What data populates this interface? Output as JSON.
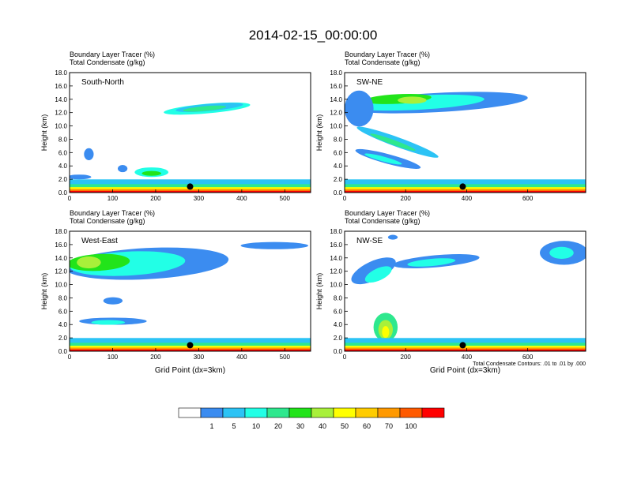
{
  "title": "2014-02-15_00:00:00",
  "chart_data": [
    {
      "type": "heatmap",
      "label": "South-North",
      "left_title_1": "Boundary Layer Tracer   (%)",
      "left_title_2": "Total Condensate   (g/kg)",
      "ylabel": "Height (km)",
      "xlabel": "",
      "xlim": [
        0,
        560
      ],
      "ylim": [
        0,
        18
      ],
      "xticks": [
        "0",
        "100",
        "200",
        "300",
        "400",
        "500"
      ],
      "yticks": [
        "0.0",
        "2.0",
        "4.0",
        "6.0",
        "8.0",
        "10.0",
        "12.0",
        "14.0",
        "16.0",
        "18.0"
      ]
    },
    {
      "type": "heatmap",
      "label": "SW-NE",
      "left_title_1": "Boundary Layer Tracer   (%)",
      "left_title_2": "Total Condensate   (g/kg)",
      "ylabel": "Height (km)",
      "xlabel": "",
      "xlim": [
        0,
        790
      ],
      "ylim": [
        0,
        18
      ],
      "xticks": [
        "0",
        "200",
        "400",
        "600"
      ],
      "yticks": [
        "0.0",
        "2.0",
        "4.0",
        "6.0",
        "8.0",
        "10.0",
        "12.0",
        "14.0",
        "16.0",
        "18.0"
      ]
    },
    {
      "type": "heatmap",
      "label": "West-East",
      "left_title_1": "Boundary Layer Tracer   (%)",
      "left_title_2": "Total Condensate   (g/kg)",
      "ylabel": "Height (km)",
      "xlabel": "Grid Point (dx=3km)",
      "xlim": [
        0,
        560
      ],
      "ylim": [
        0,
        18
      ],
      "xticks": [
        "0",
        "100",
        "200",
        "300",
        "400",
        "500"
      ],
      "yticks": [
        "0.0",
        "2.0",
        "4.0",
        "6.0",
        "8.0",
        "10.0",
        "12.0",
        "14.0",
        "16.0",
        "18.0"
      ]
    },
    {
      "type": "heatmap",
      "label": "NW-SE",
      "left_title_1": "Boundary Layer Tracer   (%)",
      "left_title_2": "Total Condensate   (g/kg)",
      "ylabel": "Height (km)",
      "xlabel": "Grid Point (dx=3km)",
      "xlim": [
        0,
        790
      ],
      "ylim": [
        0,
        18
      ],
      "xticks": [
        "0",
        "200",
        "400",
        "600"
      ],
      "yticks": [
        "0.0",
        "2.0",
        "4.0",
        "6.0",
        "8.0",
        "10.0",
        "12.0",
        "14.0",
        "16.0",
        "18.0"
      ],
      "footnote": "Total Condensate Contours: .01 to .01 by .000"
    }
  ],
  "colorbar": {
    "colors": [
      "#ffffff",
      "#3b8cf0",
      "#2cc3f5",
      "#22ffe6",
      "#2ee88e",
      "#22e41a",
      "#a8f03a",
      "#ffff00",
      "#ffcc00",
      "#ff9900",
      "#ff5a00",
      "#ff0000"
    ],
    "labels": [
      "1",
      "5",
      "10",
      "20",
      "30",
      "40",
      "50",
      "60",
      "70",
      "100"
    ]
  }
}
